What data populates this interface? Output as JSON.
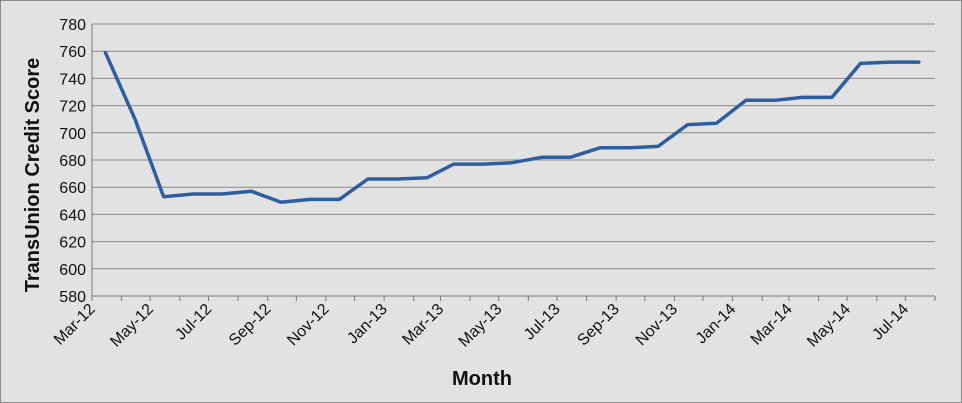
{
  "chart_data": {
    "type": "line",
    "title": "",
    "xlabel": "Month",
    "ylabel": "TransUnion Credit Score",
    "ylim": [
      580,
      780
    ],
    "yticks": [
      580,
      600,
      620,
      640,
      660,
      680,
      700,
      720,
      740,
      760,
      780
    ],
    "x_tick_labels": [
      "Mar-12",
      "May-12",
      "Jul-12",
      "Sep-12",
      "Nov-12",
      "Jan-13",
      "Mar-13",
      "May-13",
      "Jul-13",
      "Sep-13",
      "Nov-13",
      "Jan-14",
      "Mar-14",
      "May-14",
      "Jul-14"
    ],
    "grid": "horizontal",
    "legend": "none",
    "line_color": "#2f5e9e",
    "series": [
      {
        "x": [
          "2012-03-15",
          "2012-04-15",
          "2012-05-15",
          "2012-06-15",
          "2012-07-15",
          "2012-08-15",
          "2012-09-15",
          "2012-10-15",
          "2012-11-15",
          "2012-12-15",
          "2013-01-15",
          "2013-02-15",
          "2013-03-15",
          "2013-04-15",
          "2013-05-15",
          "2013-06-15",
          "2013-07-15",
          "2013-08-15",
          "2013-09-15",
          "2013-10-15",
          "2013-11-15",
          "2013-12-15",
          "2014-01-15",
          "2014-02-15",
          "2014-03-15",
          "2014-04-15",
          "2014-05-15",
          "2014-06-15",
          "2014-07-15"
        ],
        "values": [
          759,
          710,
          653,
          655,
          655,
          657,
          649,
          651,
          651,
          666,
          666,
          667,
          677,
          677,
          678,
          682,
          682,
          689,
          689,
          690,
          706,
          707,
          724,
          724,
          726,
          726,
          751,
          752,
          752
        ]
      }
    ]
  }
}
